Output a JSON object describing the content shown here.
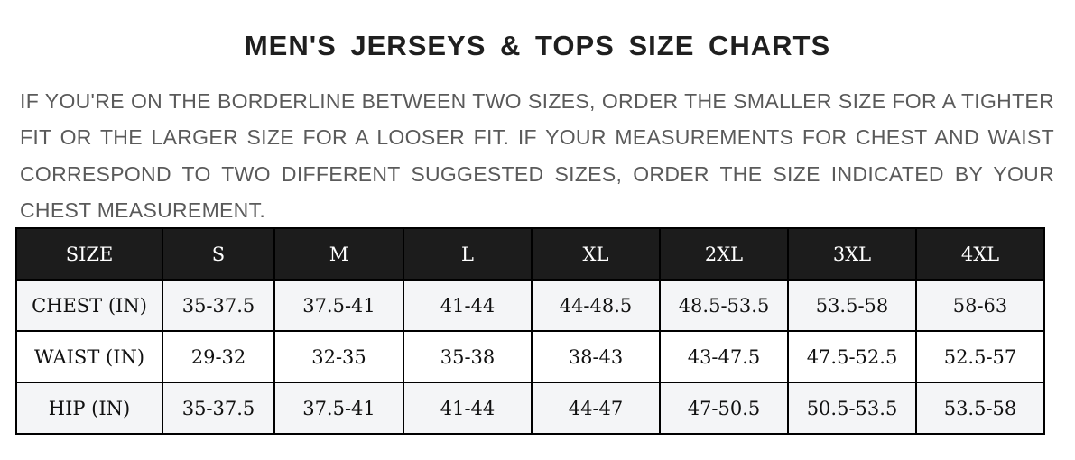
{
  "title": "MEN'S JERSEYS & TOPS SIZE CHARTS",
  "note": "IF YOU'RE ON THE BORDERLINE BETWEEN TWO SIZES, ORDER THE SMALLER SIZE FOR A TIGHTER FIT OR THE LARGER SIZE FOR A LOOSER FIT. IF YOUR MEASUREMENTS FOR CHEST AND WAIST CORRESPOND TO TWO DIFFERENT SUGGESTED SIZES, ORDER THE SIZE INDICATED BY YOUR CHEST MEASUREMENT.",
  "table": {
    "headers": [
      "SIZE",
      "S",
      "M",
      "L",
      "XL",
      "2XL",
      "3XL",
      "4XL"
    ],
    "rows": [
      [
        "CHEST (IN)",
        "35-37.5",
        "37.5-41",
        "41-44",
        "44-48.5",
        "48.5-53.5",
        "53.5-58",
        "58-63"
      ],
      [
        "WAIST (IN)",
        "29-32",
        "32-35",
        "35-38",
        "38-43",
        "43-47.5",
        "47.5-52.5",
        "52.5-57"
      ],
      [
        "HIP (IN)",
        "35-37.5",
        "37.5-41",
        "41-44",
        "44-47",
        "47-50.5",
        "50.5-53.5",
        "53.5-58"
      ]
    ]
  },
  "colors": {
    "header_bg": "#1c1c1c",
    "alt_row_bg": "#f4f5f7",
    "text_gray": "#5a5a5a"
  }
}
